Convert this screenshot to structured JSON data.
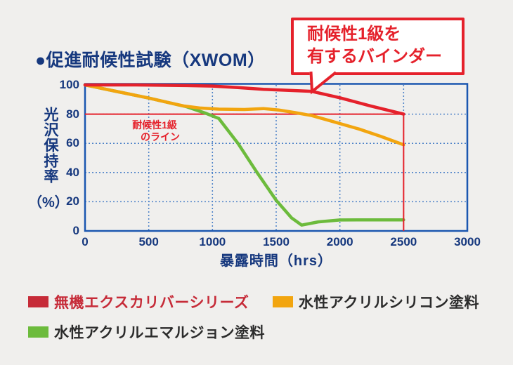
{
  "page": {
    "background": "#f0efed"
  },
  "title": {
    "text": "●促進耐候性試験（XWOM）",
    "color": "#16387e"
  },
  "callout": {
    "line1": "耐候性1級を",
    "line2": "有するバインダー",
    "border_color": "#e5212b"
  },
  "ref_label": {
    "line1": "耐候性1級",
    "line2": "のライン"
  },
  "axes": {
    "y_title": "光沢保持率",
    "y_unit": "（%）",
    "x_title": "暴露時間（hrs）"
  },
  "legend": {
    "items": [
      {
        "label": "無機エクスカリバーシリーズ",
        "color": "#c62b38",
        "text_color": "#c62b38"
      },
      {
        "label": "水性アクリルシリコン塗料",
        "color": "#f2a50f",
        "text_color": "#2b2b2b"
      },
      {
        "label": "水性アクリルエマルジョン塗料",
        "color": "#6cbb3c",
        "text_color": "#2b2b2b"
      }
    ]
  },
  "chart_data": {
    "type": "line",
    "title": "促進耐候性試験（XWOM）",
    "xlabel": "暴露時間（hrs）",
    "ylabel": "光沢保持率（%）",
    "xlim": [
      0,
      3000
    ],
    "ylim": [
      0,
      100
    ],
    "x_ticks": [
      0,
      500,
      1000,
      1500,
      2000,
      2500,
      3000
    ],
    "y_ticks": [
      0,
      20,
      40,
      60,
      80,
      100
    ],
    "grid": "dotted",
    "grid_color": "#4d82c8",
    "border_color": "#1b57b0",
    "legend_position": "bottom",
    "reference_line": {
      "label": "耐候性1級のライン",
      "y": 80,
      "x_start": 0,
      "x_end": 2500,
      "drop_to_zero_at_x": 2500,
      "color": "#e5212b"
    },
    "annotation": {
      "text": "耐候性1級を有するバインダー",
      "points_at": {
        "x": 1780,
        "y": 95.5
      }
    },
    "series": [
      {
        "name": "無機エクスカリバーシリーズ",
        "color": "#e5212b",
        "points": [
          [
            0,
            100
          ],
          [
            400,
            100
          ],
          [
            800,
            99.6
          ],
          [
            1000,
            99.2
          ],
          [
            1200,
            98.2
          ],
          [
            1400,
            97
          ],
          [
            1600,
            96.3
          ],
          [
            1780,
            95.6
          ],
          [
            2000,
            91.2
          ],
          [
            2240,
            85.6
          ],
          [
            2500,
            80
          ]
        ]
      },
      {
        "name": "水性アクリルシリコン塗料",
        "color": "#f2a50f",
        "points": [
          [
            0,
            100
          ],
          [
            250,
            95.5
          ],
          [
            500,
            91
          ],
          [
            650,
            88
          ],
          [
            780,
            85.5
          ],
          [
            900,
            84.2
          ],
          [
            1050,
            83.4
          ],
          [
            1250,
            83.2
          ],
          [
            1400,
            83.8
          ],
          [
            1520,
            82.8
          ],
          [
            1650,
            81
          ],
          [
            1780,
            79
          ],
          [
            1950,
            74.8
          ],
          [
            2150,
            69.8
          ],
          [
            2320,
            64.8
          ],
          [
            2500,
            59
          ]
        ]
      },
      {
        "name": "水性アクリルエマルジョン塗料",
        "color": "#6cbb3c",
        "points": [
          [
            0,
            100
          ],
          [
            250,
            95.5
          ],
          [
            500,
            91
          ],
          [
            650,
            88
          ],
          [
            800,
            85
          ],
          [
            950,
            80.5
          ],
          [
            1050,
            77
          ],
          [
            1200,
            60
          ],
          [
            1350,
            40
          ],
          [
            1500,
            21
          ],
          [
            1620,
            9
          ],
          [
            1700,
            4
          ],
          [
            1830,
            6.2
          ],
          [
            2000,
            7.5
          ],
          [
            2250,
            7.6
          ],
          [
            2500,
            7.6
          ]
        ]
      }
    ]
  }
}
